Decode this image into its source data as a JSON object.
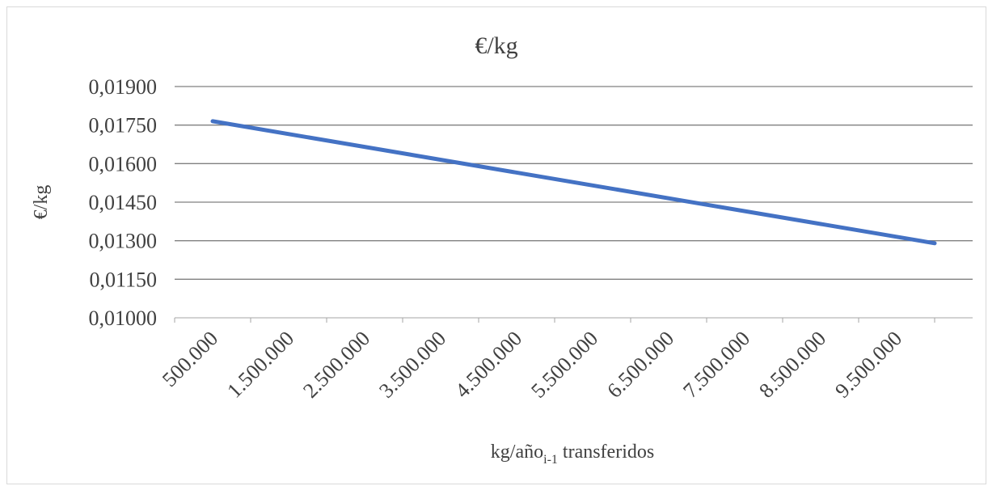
{
  "chart_data": {
    "type": "line",
    "title": "€/kg",
    "ylabel": "€/kg",
    "xlabel": {
      "main": "kg/año",
      "subscript": "i-1",
      "suffix": " transferidos"
    },
    "categories": [
      "500.000",
      "1.500.000",
      "2.500.000",
      "3.500.000",
      "4.500.000",
      "5.500.000",
      "6.500.000",
      "7.500.000",
      "8.500.000",
      "9.500.000"
    ],
    "yticks": [
      "0,01000",
      "0,01150",
      "0,01300",
      "0,01450",
      "0,01600",
      "0,01750",
      "0,01900"
    ],
    "ylim": [
      0.01,
      0.019
    ],
    "series": [
      {
        "x": [
          500000,
          10000000
        ],
        "values": [
          0.01765,
          0.0129
        ],
        "color": "#4472c4"
      }
    ],
    "xlim": [
      0,
      10500000
    ],
    "grid": true,
    "legend": "none"
  }
}
